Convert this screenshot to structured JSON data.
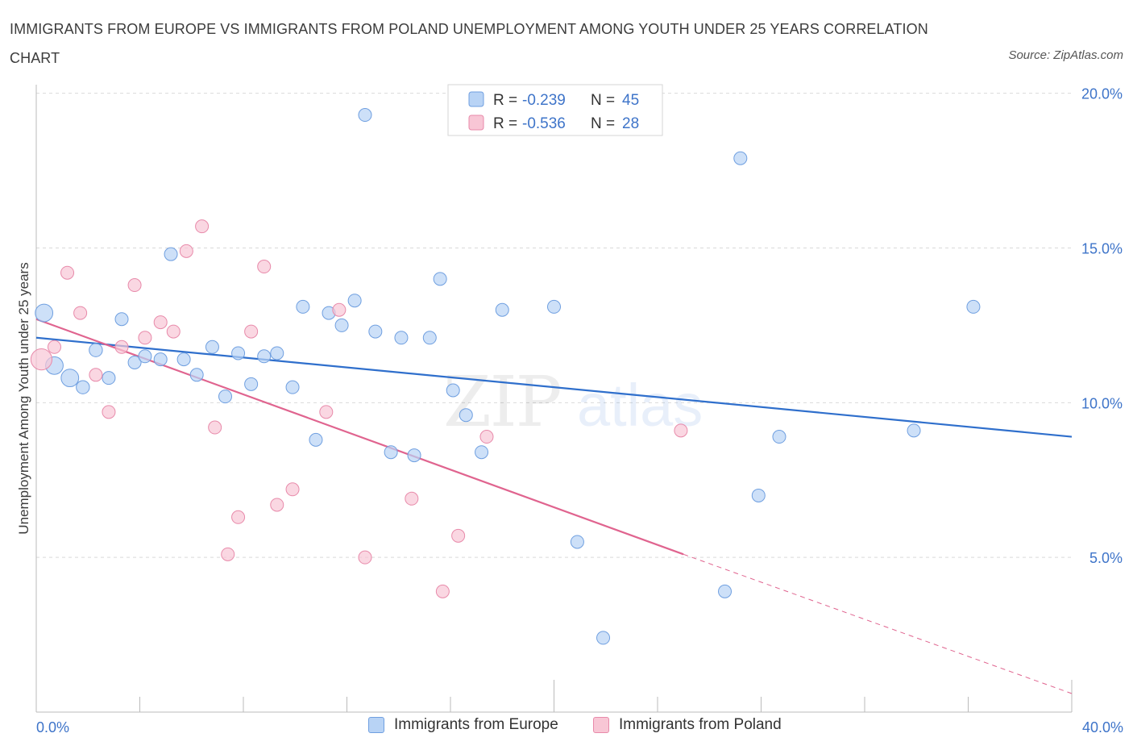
{
  "title": "IMMIGRANTS FROM EUROPE VS IMMIGRANTS FROM POLAND UNEMPLOYMENT AMONG YOUTH UNDER 25 YEARS CORRELATION CHART",
  "source": "Source: ZipAtlas.com",
  "colors": {
    "europe_fill": "#b8d3f5",
    "europe_stroke": "#6f9fe0",
    "europe_line": "#2f6fcc",
    "poland_fill": "#f8c6d5",
    "poland_stroke": "#e88aaa",
    "poland_line": "#e0648f",
    "axis_text": "#3e74c9",
    "grid": "#d9d9d9"
  },
  "legend": {
    "europe": {
      "r_label": "R =",
      "r_value": "-0.239",
      "n_label": "N =",
      "n_value": "45"
    },
    "poland": {
      "r_label": "R =",
      "r_value": "-0.536",
      "n_label": "N =",
      "n_value": "28"
    }
  },
  "bottom_legend": {
    "europe": "Immigrants from Europe",
    "poland": "Immigrants from Poland"
  },
  "chart_data": {
    "type": "scatter",
    "ylabel": "Unemployment Among Youth under 25 years",
    "x_tick_labels": [
      "0.0%",
      "40.0%"
    ],
    "y_tick_labels": [
      "5.0%",
      "10.0%",
      "15.0%",
      "20.0%"
    ],
    "y_ticks": [
      5,
      10,
      15,
      20
    ],
    "xlim": [
      0,
      40
    ],
    "ylim": [
      0,
      20.5
    ],
    "grid": true,
    "legend_position": "top-center",
    "watermark": "ZIPatlas",
    "series": [
      {
        "name": "Immigrants from Europe",
        "trend": [
          [
            0,
            12.1
          ],
          [
            40,
            8.9
          ]
        ],
        "points": [
          [
            0.3,
            12.9,
            2
          ],
          [
            0.7,
            11.2,
            2
          ],
          [
            1.3,
            10.8,
            2
          ],
          [
            1.8,
            10.5,
            1.5
          ],
          [
            2.3,
            11.7,
            1.5
          ],
          [
            2.8,
            10.8,
            1
          ],
          [
            3.3,
            12.7,
            1
          ],
          [
            3.8,
            11.3,
            1
          ],
          [
            4.2,
            11.5,
            1
          ],
          [
            4.8,
            11.4,
            1
          ],
          [
            5.2,
            14.8,
            1
          ],
          [
            5.7,
            11.4,
            1
          ],
          [
            6.2,
            10.9,
            1
          ],
          [
            6.8,
            11.8,
            1
          ],
          [
            7.3,
            10.2,
            1
          ],
          [
            7.8,
            11.6,
            1
          ],
          [
            8.3,
            10.6,
            1
          ],
          [
            8.8,
            11.5,
            1
          ],
          [
            9.3,
            11.6,
            1
          ],
          [
            9.9,
            10.5,
            1
          ],
          [
            10.3,
            13.1,
            1
          ],
          [
            10.8,
            8.8,
            1
          ],
          [
            11.3,
            12.9,
            1
          ],
          [
            11.8,
            12.5,
            1
          ],
          [
            12.3,
            13.3,
            1
          ],
          [
            12.7,
            19.3,
            1
          ],
          [
            13.1,
            12.3,
            1
          ],
          [
            13.7,
            8.4,
            1
          ],
          [
            14.1,
            12.1,
            1
          ],
          [
            14.6,
            8.3,
            1
          ],
          [
            15.2,
            12.1,
            1
          ],
          [
            15.6,
            14.0,
            1
          ],
          [
            16.1,
            10.4,
            1
          ],
          [
            16.6,
            9.6,
            1
          ],
          [
            17.2,
            8.4,
            1
          ],
          [
            18.0,
            13.0,
            1
          ],
          [
            20.0,
            13.1,
            1
          ],
          [
            20.9,
            5.5,
            1
          ],
          [
            21.9,
            2.4,
            1
          ],
          [
            26.6,
            3.9,
            1
          ],
          [
            27.2,
            17.9,
            1
          ],
          [
            27.9,
            7.0,
            1
          ],
          [
            28.7,
            8.9,
            1
          ],
          [
            33.9,
            9.1,
            1
          ],
          [
            36.2,
            13.1,
            1
          ]
        ]
      },
      {
        "name": "Immigrants from Poland",
        "trend": [
          [
            0,
            12.7
          ],
          [
            25,
            5.1
          ]
        ],
        "trend_dashed": [
          [
            25,
            5.1
          ],
          [
            40,
            0.6
          ]
        ],
        "points": [
          [
            0.2,
            11.4,
            2.4
          ],
          [
            0.7,
            11.8,
            1
          ],
          [
            1.2,
            14.2,
            1
          ],
          [
            1.7,
            12.9,
            1
          ],
          [
            2.3,
            10.9,
            1
          ],
          [
            2.8,
            9.7,
            1
          ],
          [
            3.3,
            11.8,
            1
          ],
          [
            3.8,
            13.8,
            1
          ],
          [
            4.2,
            12.1,
            1
          ],
          [
            4.8,
            12.6,
            1
          ],
          [
            5.3,
            12.3,
            1
          ],
          [
            5.8,
            14.9,
            1
          ],
          [
            6.4,
            15.7,
            1
          ],
          [
            6.9,
            9.2,
            1
          ],
          [
            7.4,
            5.1,
            1
          ],
          [
            7.8,
            6.3,
            1
          ],
          [
            8.3,
            12.3,
            1
          ],
          [
            8.8,
            14.4,
            1
          ],
          [
            9.3,
            6.7,
            1
          ],
          [
            9.9,
            7.2,
            1
          ],
          [
            11.2,
            9.7,
            1
          ],
          [
            11.7,
            13.0,
            1
          ],
          [
            12.7,
            5.0,
            1
          ],
          [
            14.5,
            6.9,
            1
          ],
          [
            15.7,
            3.9,
            1
          ],
          [
            16.3,
            5.7,
            1
          ],
          [
            17.4,
            8.9,
            1
          ],
          [
            24.9,
            9.1,
            1
          ]
        ]
      }
    ]
  }
}
